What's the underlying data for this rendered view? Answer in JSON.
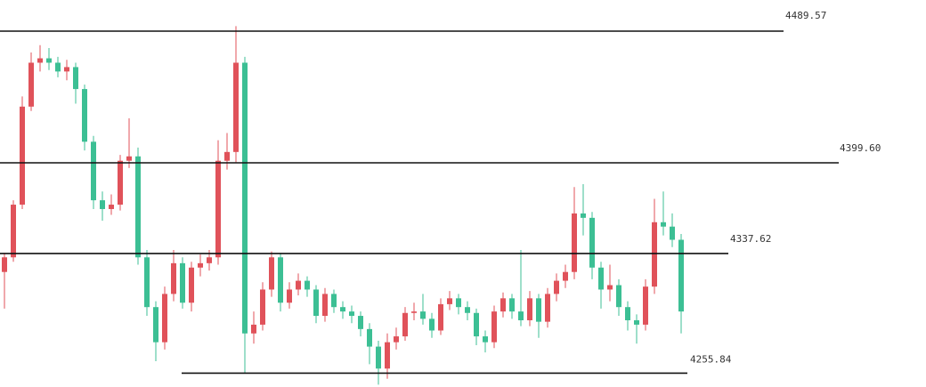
{
  "chart_data": {
    "type": "candlestick",
    "ylim": [
      4246.4,
      4510.85
    ],
    "up_color": "#e0525a",
    "down_color": "#3cbf94",
    "level_color": "#111111",
    "levels": [
      {
        "value": 4489.57,
        "label": "4489.57"
      },
      {
        "value": 4399.6,
        "label": "4399.60"
      },
      {
        "value": 4337.62,
        "label": "4337.62"
      },
      {
        "value": 4255.84,
        "label": "4255.84"
      }
    ],
    "open": [
      4325,
      4335,
      4371,
      4438,
      4468,
      4471,
      4468,
      4462,
      4465,
      4450,
      4414,
      4374,
      4368,
      4371,
      4401,
      4404,
      4335,
      4301,
      4277,
      4310,
      4331,
      4304,
      4328,
      4331,
      4335,
      4401,
      4407,
      4468,
      4283,
      4289,
      4313,
      4335,
      4304,
      4313,
      4319,
      4313,
      4295,
      4310,
      4301,
      4298,
      4295,
      4286,
      4274,
      4259,
      4277,
      4281,
      4297,
      4298,
      4293,
      4285,
      4303,
      4307,
      4301,
      4297,
      4281,
      4277,
      4298,
      4307,
      4298,
      4292,
      4307,
      4291,
      4310,
      4319,
      4325,
      4365,
      4362,
      4328,
      4313,
      4316,
      4301,
      4292,
      4289,
      4315,
      4359,
      4356,
      4347
    ],
    "high": [
      4338,
      4374,
      4445,
      4475,
      4480,
      4478,
      4472,
      4470,
      4468,
      4453,
      4418,
      4380,
      4378,
      4405,
      4430,
      4410,
      4340,
      4305,
      4315,
      4340,
      4335,
      4332,
      4337,
      4340,
      4415,
      4420,
      4493,
      4472,
      4298,
      4318,
      4339,
      4338,
      4318,
      4324,
      4322,
      4316,
      4314,
      4313,
      4305,
      4302,
      4298,
      4290,
      4278,
      4283,
      4287,
      4301,
      4304,
      4310,
      4297,
      4307,
      4312,
      4310,
      4305,
      4300,
      4285,
      4302,
      4311,
      4310,
      4340,
      4312,
      4310,
      4314,
      4324,
      4330,
      4383,
      4385,
      4366,
      4332,
      4330,
      4320,
      4305,
      4296,
      4320,
      4375,
      4380,
      4365,
      4351
    ],
    "low": [
      4300,
      4332,
      4368,
      4435,
      4462,
      4463,
      4458,
      4456,
      4440,
      4408,
      4368,
      4360,
      4364,
      4367,
      4396,
      4330,
      4295,
      4264,
      4272,
      4305,
      4300,
      4298,
      4322,
      4326,
      4330,
      4395,
      4400,
      4256,
      4276,
      4285,
      4308,
      4298,
      4300,
      4309,
      4308,
      4290,
      4291,
      4297,
      4293,
      4290,
      4281,
      4262,
      4248,
      4252,
      4272,
      4278,
      4292,
      4289,
      4280,
      4282,
      4299,
      4296,
      4292,
      4275,
      4270,
      4273,
      4294,
      4293,
      4288,
      4288,
      4280,
      4287,
      4305,
      4314,
      4320,
      4350,
      4320,
      4300,
      4305,
      4295,
      4285,
      4276,
      4285,
      4310,
      4350,
      4342,
      4283
    ],
    "close": [
      4335,
      4371,
      4438,
      4468,
      4471,
      4468,
      4462,
      4465,
      4450,
      4414,
      4374,
      4368,
      4371,
      4401,
      4404,
      4335,
      4301,
      4277,
      4310,
      4331,
      4304,
      4328,
      4331,
      4335,
      4401,
      4407,
      4468,
      4283,
      4289,
      4313,
      4335,
      4304,
      4313,
      4319,
      4313,
      4295,
      4310,
      4301,
      4298,
      4295,
      4286,
      4274,
      4259,
      4277,
      4281,
      4297,
      4298,
      4293,
      4285,
      4303,
      4307,
      4301,
      4297,
      4281,
      4277,
      4298,
      4307,
      4298,
      4292,
      4307,
      4291,
      4310,
      4319,
      4325,
      4365,
      4362,
      4328,
      4313,
      4316,
      4301,
      4292,
      4289,
      4315,
      4359,
      4356,
      4347,
      4298
    ]
  }
}
